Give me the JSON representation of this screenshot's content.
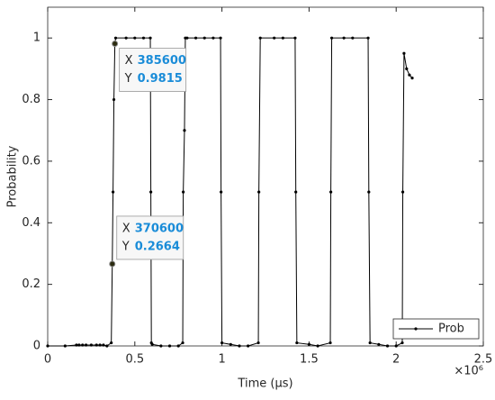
{
  "chart_data": {
    "type": "line",
    "xlabel": "Time (μs)",
    "ylabel": "Probability",
    "x_multiplier": "×10⁶",
    "xlim": [
      0,
      2500000
    ],
    "ylim": [
      0,
      1.1
    ],
    "xticks": [
      {
        "value": 0,
        "label": "0"
      },
      {
        "value": 500000,
        "label": "0.5"
      },
      {
        "value": 1000000,
        "label": "1"
      },
      {
        "value": 1500000,
        "label": "1.5"
      },
      {
        "value": 2000000,
        "label": "2"
      },
      {
        "value": 2500000,
        "label": "2.5"
      }
    ],
    "yticks": [
      0,
      0.2,
      0.4,
      0.6,
      0.8,
      1
    ],
    "legend": "bottom-right",
    "x": [
      0,
      100000,
      165000,
      180000,
      200000,
      220000,
      250000,
      280000,
      300000,
      320000,
      340000,
      365000,
      370600,
      375000,
      380000,
      385600,
      390000,
      450000,
      500000,
      550000,
      589000,
      592000,
      595000,
      600000,
      650000,
      700000,
      750000,
      775000,
      778000,
      785000,
      790000,
      800000,
      850000,
      900000,
      950000,
      992000,
      995000,
      1000000,
      1050000,
      1100000,
      1150000,
      1209000,
      1212000,
      1220000,
      1300000,
      1350000,
      1420000,
      1424000,
      1430000,
      1500000,
      1550000,
      1622000,
      1625000,
      1630000,
      1700000,
      1750000,
      1839000,
      1843000,
      1850000,
      1900000,
      1950000,
      2000000,
      2035000,
      2038000,
      2045000,
      2060000,
      2076000,
      2092000
    ],
    "series": [
      {
        "name": "Prob",
        "color": "#000000",
        "values": [
          0,
          0,
          0.003,
          0.003,
          0.003,
          0.003,
          0.003,
          0.003,
          0.003,
          0.003,
          0,
          0.01,
          0.2664,
          0.5,
          0.8,
          0.9815,
          1,
          1,
          1,
          1,
          1,
          0.5,
          0.01,
          0.005,
          0,
          0,
          0,
          0.01,
          0.5,
          0.7,
          1,
          1,
          1,
          1,
          1,
          1,
          0.5,
          0.01,
          0.005,
          0,
          0,
          0.01,
          0.5,
          1,
          1,
          1,
          1,
          0.5,
          0.01,
          0.005,
          0,
          0.01,
          0.5,
          1,
          1,
          1,
          1,
          0.5,
          0.01,
          0.005,
          0,
          0,
          0.01,
          0.5,
          0.95,
          0.9,
          0.88,
          0.87
        ]
      }
    ],
    "datatip_labels": [
      "X",
      "Y"
    ],
    "datatips": [
      {
        "x": 385600,
        "y": 0.9815
      },
      {
        "x": 370600,
        "y": 0.2664
      }
    ]
  }
}
